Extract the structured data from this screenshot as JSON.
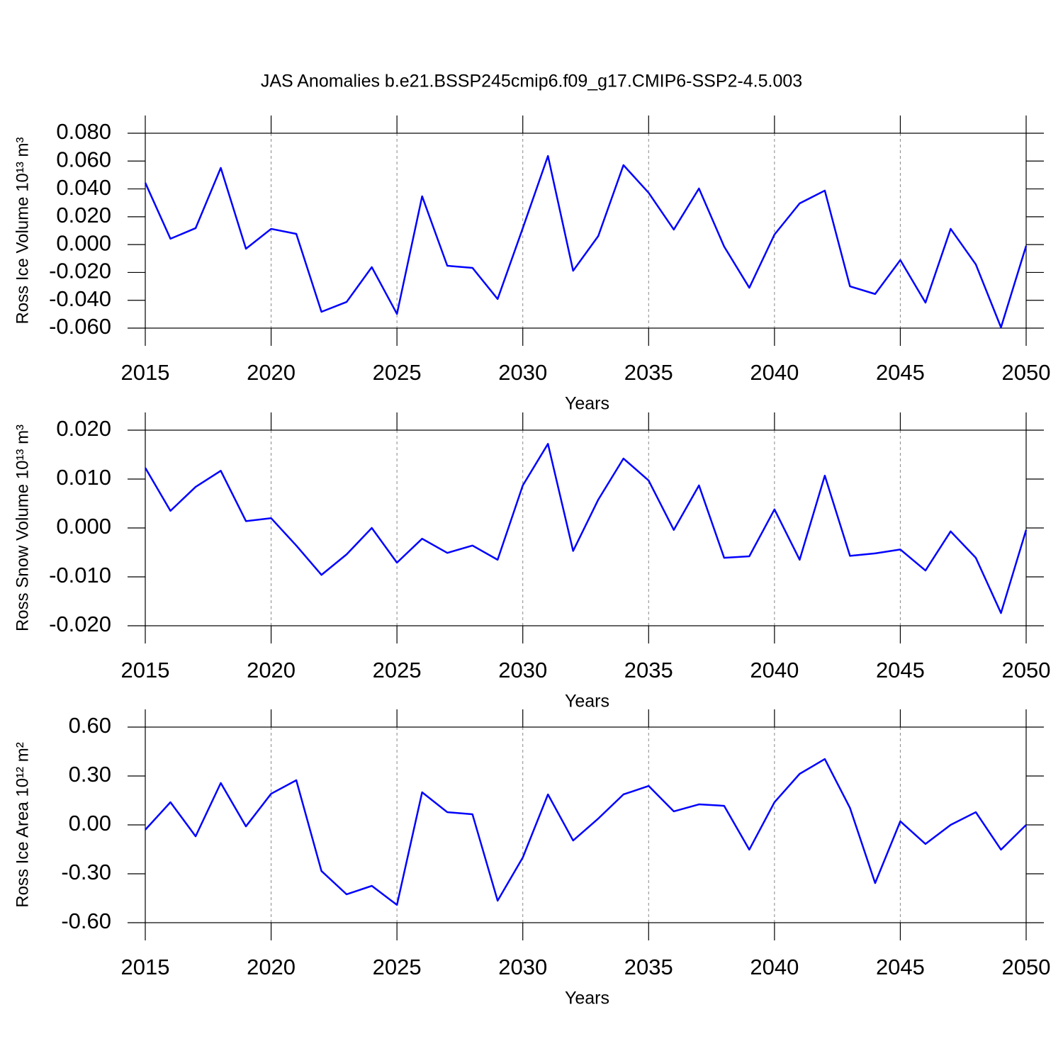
{
  "title": "JAS Anomalies b.e21.BSSP245cmip6.f09_g17.CMIP6-SSP2-4.5.003",
  "chart_data": [
    {
      "type": "line",
      "xlabel": "Years",
      "ylabel": "Ross Ice Volume 10¹³ m³",
      "x": [
        2015,
        2016,
        2017,
        2018,
        2019,
        2020,
        2021,
        2022,
        2023,
        2024,
        2025,
        2026,
        2027,
        2028,
        2029,
        2030,
        2031,
        2032,
        2033,
        2034,
        2035,
        2036,
        2037,
        2038,
        2039,
        2040,
        2041,
        2042,
        2043,
        2044,
        2045,
        2046,
        2047,
        2048,
        2049,
        2050
      ],
      "series": [
        {
          "color": "#0000ff",
          "values": [
            0.0444,
            0.0042,
            0.0118,
            0.0551,
            -0.003,
            0.0113,
            0.0077,
            -0.0483,
            -0.0412,
            -0.0162,
            -0.0498,
            0.0347,
            -0.0152,
            -0.0167,
            -0.0391,
            0.0118,
            0.0637,
            -0.0188,
            0.0062,
            0.0571,
            0.0372,
            0.0108,
            0.0403,
            -0.0014,
            -0.031,
            0.0072,
            0.0296,
            0.0388,
            -0.03,
            -0.0355,
            -0.0111,
            -0.0417,
            0.0113,
            -0.0142,
            -0.0595,
            -0.0009
          ]
        }
      ],
      "xlim": [
        2015,
        2050
      ],
      "xticks": [
        2015,
        2020,
        2025,
        2030,
        2035,
        2040,
        2045,
        2050
      ],
      "ylim": [
        -0.06,
        0.08
      ],
      "yticks": [
        {
          "value": 0.08,
          "label": "0.080"
        },
        {
          "value": 0.06,
          "label": "0.060"
        },
        {
          "value": 0.04,
          "label": "0.040"
        },
        {
          "value": 0.02,
          "label": "0.020"
        },
        {
          "value": 0,
          "label": "0.000"
        },
        {
          "value": -0.02,
          "label": "-0.020"
        },
        {
          "value": -0.04,
          "label": "-0.040"
        },
        {
          "value": -0.06,
          "label": "-0.060"
        }
      ],
      "xgrid": true
    },
    {
      "type": "line",
      "xlabel": "Years",
      "ylabel": "Ross Snow Volume 10¹³ m³",
      "x": [
        2015,
        2016,
        2017,
        2018,
        2019,
        2020,
        2021,
        2022,
        2023,
        2024,
        2025,
        2026,
        2027,
        2028,
        2029,
        2030,
        2031,
        2032,
        2033,
        2034,
        2035,
        2036,
        2037,
        2038,
        2039,
        2040,
        2041,
        2042,
        2043,
        2044,
        2045,
        2046,
        2047,
        2048,
        2049,
        2050
      ],
      "series": [
        {
          "color": "#0000ff",
          "values": [
            0.0123,
            0.0035,
            0.0084,
            0.0117,
            0.0014,
            0.002,
            -0.0036,
            -0.0096,
            -0.0054,
            0.0,
            -0.0071,
            -0.0022,
            -0.0051,
            -0.0036,
            -0.0065,
            0.0087,
            0.0172,
            -0.0047,
            0.0058,
            0.0142,
            0.0097,
            -0.0004,
            0.0087,
            -0.0061,
            -0.0058,
            0.0038,
            -0.0065,
            0.0107,
            -0.0057,
            -0.0052,
            -0.0044,
            -0.0087,
            -0.0007,
            -0.0061,
            -0.0174,
            -0.0004
          ]
        }
      ],
      "xlim": [
        2015,
        2050
      ],
      "xticks": [
        2015,
        2020,
        2025,
        2030,
        2035,
        2040,
        2045,
        2050
      ],
      "ylim": [
        -0.02,
        0.02
      ],
      "yticks": [
        {
          "value": 0.02,
          "label": "0.020"
        },
        {
          "value": 0.01,
          "label": "0.010"
        },
        {
          "value": 0,
          "label": "0.000"
        },
        {
          "value": -0.01,
          "label": "-0.010"
        },
        {
          "value": -0.02,
          "label": "-0.020"
        }
      ],
      "xgrid": true
    },
    {
      "type": "line",
      "xlabel": "Years",
      "ylabel": "Ross Ice Area 10¹² m²",
      "x": [
        2015,
        2016,
        2017,
        2018,
        2019,
        2020,
        2021,
        2022,
        2023,
        2024,
        2025,
        2026,
        2027,
        2028,
        2029,
        2030,
        2031,
        2032,
        2033,
        2034,
        2035,
        2036,
        2037,
        2038,
        2039,
        2040,
        2041,
        2042,
        2043,
        2044,
        2045,
        2046,
        2047,
        2048,
        2049,
        2050
      ],
      "series": [
        {
          "color": "#0000ff",
          "values": [
            -0.03,
            0.139,
            -0.07,
            0.257,
            -0.009,
            0.191,
            0.274,
            -0.283,
            -0.426,
            -0.374,
            -0.491,
            0.2,
            0.078,
            0.065,
            -0.465,
            -0.2,
            0.187,
            -0.096,
            0.039,
            0.187,
            0.239,
            0.083,
            0.126,
            0.117,
            -0.152,
            0.139,
            0.313,
            0.404,
            0.104,
            -0.357,
            0.022,
            -0.117,
            0.0,
            0.078,
            -0.152,
            0.0
          ]
        }
      ],
      "xlim": [
        2015,
        2050
      ],
      "xticks": [
        2015,
        2020,
        2025,
        2030,
        2035,
        2040,
        2045,
        2050
      ],
      "ylim": [
        -0.6,
        0.6
      ],
      "yticks": [
        {
          "value": 0.6,
          "label": "0.60"
        },
        {
          "value": 0.3,
          "label": "0.30"
        },
        {
          "value": 0,
          "label": "0.00"
        },
        {
          "value": -0.3,
          "label": "-0.30"
        },
        {
          "value": -0.6,
          "label": "-0.60"
        }
      ],
      "xgrid": true
    }
  ]
}
